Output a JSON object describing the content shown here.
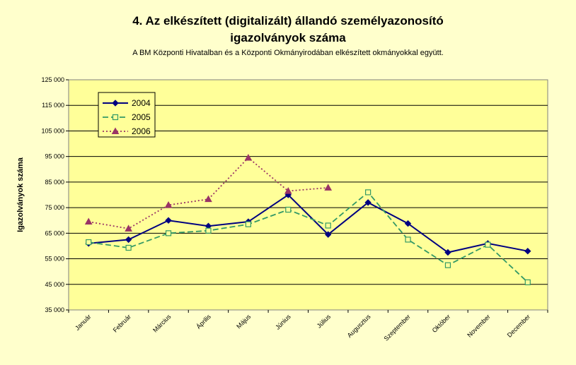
{
  "chart_data": {
    "type": "line",
    "title_line1": "4. Az elkészített (digitalizált) állandó személyazonosító",
    "title_line2": "igazolványok száma",
    "subtitle": "A BM Központi Hivatalban és a Központi Okmányirodában elkészített okmányokkal együtt.",
    "ylabel": "Igazolványok száma",
    "xlabel": "",
    "ylim": [
      35000,
      125000
    ],
    "yticks": [
      35000,
      45000,
      55000,
      65000,
      75000,
      85000,
      95000,
      105000,
      115000,
      125000
    ],
    "ytick_labels": [
      "35 000",
      "45 000",
      "55 000",
      "65 000",
      "75 000",
      "85 000",
      "95 000",
      "105 000",
      "115 000",
      "125 000"
    ],
    "grid": true,
    "legend_position": "top-left",
    "categories": [
      "Január",
      "Február",
      "Március",
      "Április",
      "Május",
      "Június",
      "Július",
      "Augusztus",
      "Szeptember",
      "Október",
      "November",
      "December"
    ],
    "series": [
      {
        "name": "2004",
        "color": "#000080",
        "style": "solid",
        "marker": "filled-diamond",
        "values": [
          61000,
          62500,
          70000,
          67800,
          69500,
          80000,
          64500,
          77000,
          68800,
          57500,
          61000,
          58000
        ]
      },
      {
        "name": "2005",
        "color": "#339966",
        "style": "dashed",
        "marker": "open-square",
        "values": [
          61500,
          59300,
          65000,
          66000,
          68500,
          74200,
          68000,
          81000,
          62500,
          52500,
          60500,
          45800
        ]
      },
      {
        "name": "2006",
        "color": "#993366",
        "style": "dotted",
        "marker": "triangle",
        "values": [
          69500,
          66800,
          76000,
          78300,
          94500,
          81500,
          82800,
          null,
          null,
          null,
          null,
          null
        ]
      }
    ]
  }
}
